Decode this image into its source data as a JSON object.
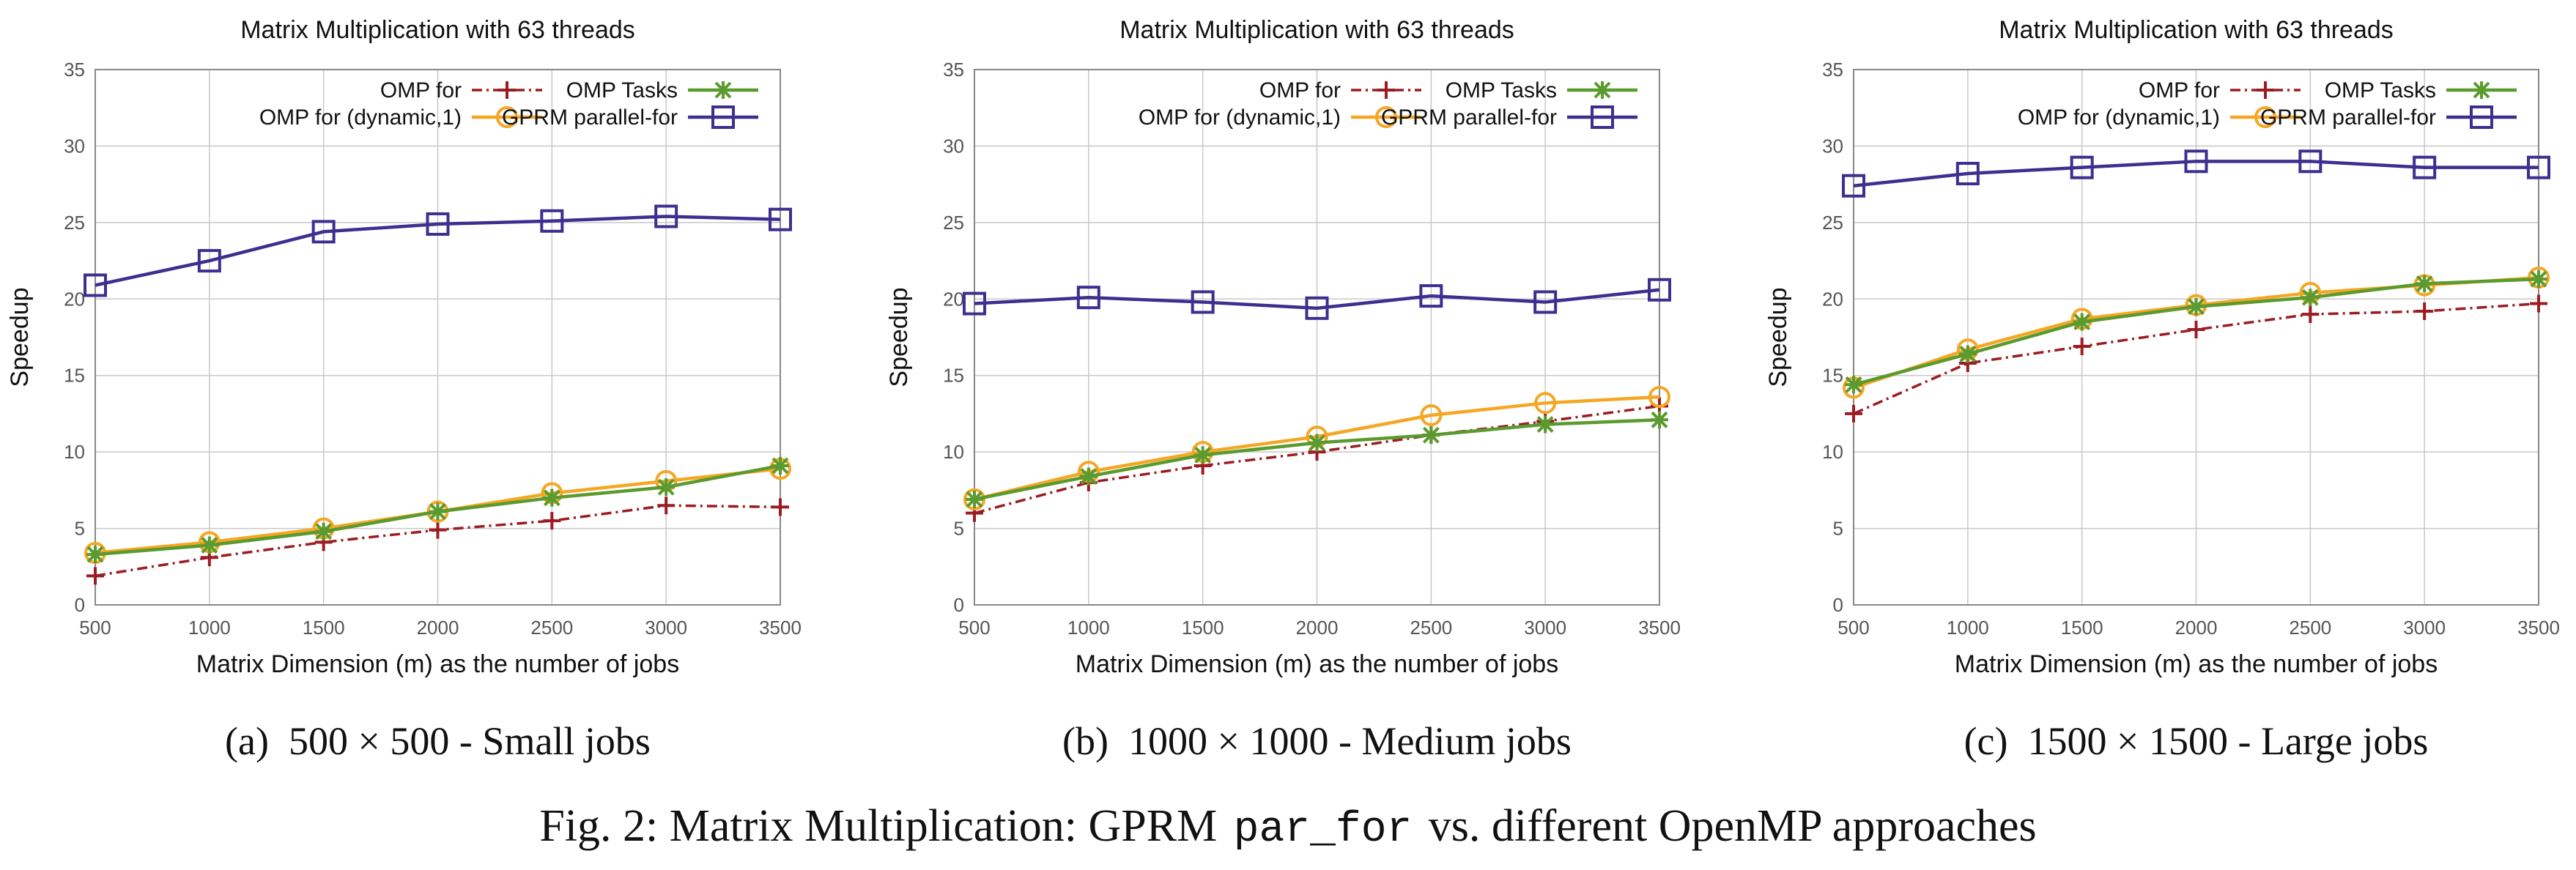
{
  "colors": {
    "omp_for": "#9b1c22",
    "omp_dynamic": "#f5a623",
    "omp_tasks": "#5a9a2e",
    "gprm": "#3d2f8f",
    "grid": "#c8c8c8",
    "axis": "#888888"
  },
  "legend_labels": {
    "omp_for": "OMP for",
    "omp_dynamic": "OMP for (dynamic,1)",
    "omp_tasks": "OMP Tasks",
    "gprm": "GPRM parallel-for"
  },
  "chart_data": [
    {
      "type": "line",
      "title": "Matrix Multiplication with 63 threads",
      "xlabel": "Matrix Dimension (m) as the number of jobs",
      "ylabel": "Speedup",
      "caption_label": "(a)",
      "caption_text": "500 × 500 - Small jobs",
      "x": [
        500,
        1000,
        1500,
        2000,
        2500,
        3000,
        3500
      ],
      "xlim": [
        500,
        3500
      ],
      "ylim": [
        0,
        35
      ],
      "yticks": [
        0,
        5,
        10,
        15,
        20,
        25,
        30,
        35
      ],
      "grid": true,
      "legend_position": "top",
      "series": [
        {
          "name": "OMP for",
          "values": [
            1.9,
            3.1,
            4.1,
            4.9,
            5.5,
            6.5,
            6.4
          ]
        },
        {
          "name": "OMP for (dynamic,1)",
          "values": [
            3.4,
            4.1,
            5.0,
            6.1,
            7.3,
            8.1,
            8.9
          ]
        },
        {
          "name": "OMP Tasks",
          "values": [
            3.3,
            3.9,
            4.8,
            6.1,
            7.0,
            7.7,
            9.1
          ]
        },
        {
          "name": "GPRM parallel-for",
          "values": [
            20.9,
            22.5,
            24.4,
            24.9,
            25.1,
            25.4,
            25.2
          ]
        }
      ]
    },
    {
      "type": "line",
      "title": "Matrix Multiplication with 63 threads",
      "xlabel": "Matrix Dimension (m) as the number of jobs",
      "ylabel": "Speedup",
      "caption_label": "(b)",
      "caption_text": "1000 × 1000 - Medium jobs",
      "x": [
        500,
        1000,
        1500,
        2000,
        2500,
        3000,
        3500
      ],
      "xlim": [
        500,
        3500
      ],
      "ylim": [
        0,
        35
      ],
      "yticks": [
        0,
        5,
        10,
        15,
        20,
        25,
        30,
        35
      ],
      "grid": true,
      "legend_position": "top",
      "series": [
        {
          "name": "OMP for",
          "values": [
            6.0,
            8.0,
            9.1,
            10.0,
            11.1,
            12.0,
            13.0
          ]
        },
        {
          "name": "OMP for (dynamic,1)",
          "values": [
            6.9,
            8.7,
            10.0,
            11.0,
            12.4,
            13.2,
            13.6
          ]
        },
        {
          "name": "OMP Tasks",
          "values": [
            6.9,
            8.4,
            9.8,
            10.6,
            11.1,
            11.8,
            12.1
          ]
        },
        {
          "name": "GPRM parallel-for",
          "values": [
            19.7,
            20.1,
            19.8,
            19.4,
            20.2,
            19.8,
            20.6
          ]
        }
      ]
    },
    {
      "type": "line",
      "title": "Matrix Multiplication with 63 threads",
      "xlabel": "Matrix Dimension (m) as the number of jobs",
      "ylabel": "Speedup",
      "caption_label": "(c)",
      "caption_text": "1500 × 1500 - Large jobs",
      "x": [
        500,
        1000,
        1500,
        2000,
        2500,
        3000,
        3500
      ],
      "xlim": [
        500,
        3500
      ],
      "ylim": [
        0,
        35
      ],
      "yticks": [
        0,
        5,
        10,
        15,
        20,
        25,
        30,
        35
      ],
      "grid": true,
      "legend_position": "top",
      "series": [
        {
          "name": "OMP for",
          "values": [
            12.5,
            15.8,
            16.9,
            18.0,
            19.0,
            19.2,
            19.7
          ]
        },
        {
          "name": "OMP for (dynamic,1)",
          "values": [
            14.2,
            16.7,
            18.7,
            19.6,
            20.4,
            20.9,
            21.4
          ]
        },
        {
          "name": "OMP Tasks",
          "values": [
            14.4,
            16.4,
            18.5,
            19.5,
            20.1,
            21.0,
            21.3
          ]
        },
        {
          "name": "GPRM parallel-for",
          "values": [
            27.4,
            28.2,
            28.6,
            29.0,
            29.0,
            28.6,
            28.6
          ]
        }
      ]
    }
  ],
  "figure_caption": {
    "prefix": "Fig. 2: Matrix Multiplication: GPRM",
    "code": "par_for",
    "suffix": "vs. different OpenMP approaches"
  }
}
